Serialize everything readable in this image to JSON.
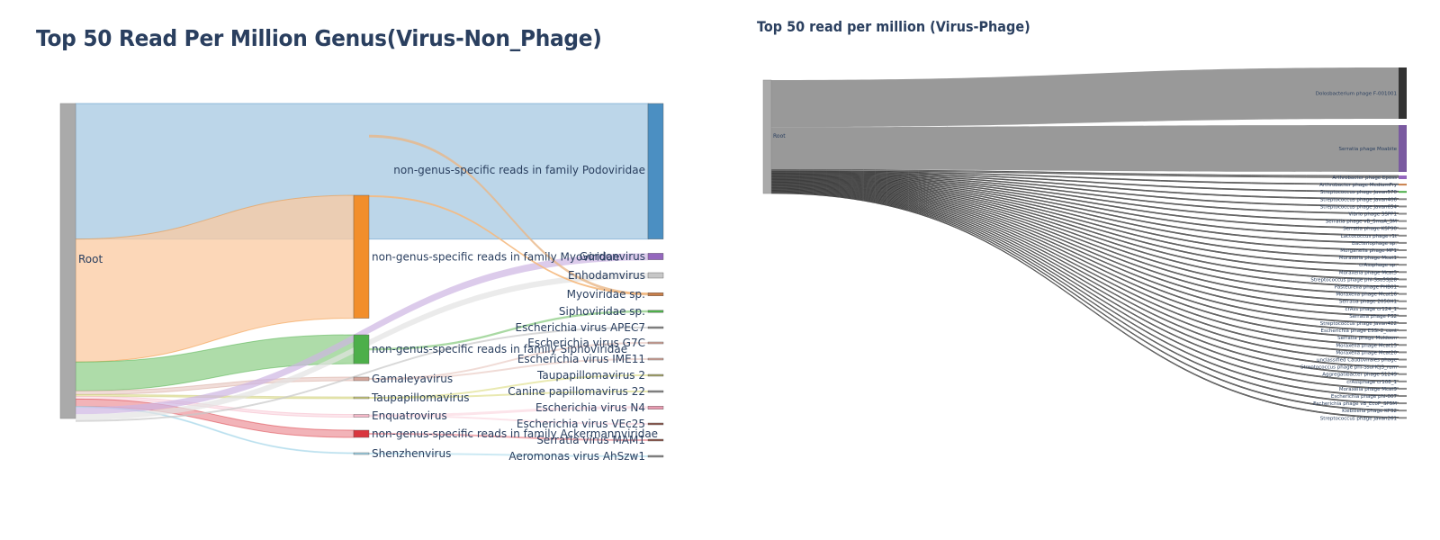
{
  "chart_data": [
    {
      "type": "sankey",
      "title": "Top 50 Read Per Million Genus(Virus-Non_Phage)",
      "root": "Root",
      "level1": [
        {
          "name": "non-genus-specific reads in family Podoviridae",
          "value": 150,
          "color": "#4b8fc2",
          "link_color": "#a6c8e1"
        },
        {
          "name": "non-genus-specific reads in family Myoviridae",
          "value": 136,
          "color": "#f28e2b",
          "link_color": "#fbc9a0"
        },
        {
          "name": "non-genus-specific reads in family Siphoviridae",
          "value": 32,
          "color": "#4daf4a",
          "link_color": "#93d08c"
        },
        {
          "name": "Gamaleyavirus",
          "value": 4,
          "color": "#d4a59a",
          "link_color": "#ecd2cc"
        },
        {
          "name": "Taupapillomavirus",
          "value": 2,
          "color": "#c9c97a",
          "link_color": "#e3e39e"
        },
        {
          "name": "Enquatrovirus",
          "value": 3,
          "color": "#f5b8c8",
          "link_color": "#fbdde5"
        },
        {
          "name": "non-genus-specific reads in family Ackermannviridae",
          "value": 8,
          "color": "#d9363e",
          "link_color": "#ee9aa0"
        },
        {
          "name": "Shenzhenvirus",
          "value": 1,
          "color": "#9fd3e8",
          "link_color": "#bfe3f0"
        }
      ],
      "level2": [
        {
          "name": "Gordonvirus",
          "value": 6,
          "color": "#9467bd",
          "link_color": "#cdb5e3"
        },
        {
          "name": "Enhodamvirus",
          "value": 5,
          "color": "#c7c7c7",
          "link_color": "#e3e3e3"
        },
        {
          "name": "Myoviridae sp.",
          "value": 3,
          "color": "#c87f4a",
          "link_color": "#e8b787"
        },
        {
          "name": "Siphoviridae sp.",
          "value": 2,
          "color": "#4daf4a",
          "link_color": "#93d08c"
        },
        {
          "name": "Escherichia virus APEC7",
          "value": 1.5,
          "color": "#888888",
          "link_color": "#c8c8c8"
        },
        {
          "name": "Escherichia virus G7C",
          "value": 1.5,
          "color": "#d4a59a",
          "link_color": "#ecd2cc"
        },
        {
          "name": "Escherichia virus IME11",
          "value": 1.5,
          "color": "#d4a59a",
          "link_color": "#ecd2cc"
        },
        {
          "name": "Taupapillomavirus 2",
          "value": 1.5,
          "color": "#a6a669",
          "link_color": "#e3e39e"
        },
        {
          "name": "Canine papillomavirus 22",
          "value": 1.5,
          "color": "#888888",
          "link_color": "#e3e39e"
        },
        {
          "name": "Escherichia virus N4",
          "value": 3,
          "color": "#e89ab0",
          "link_color": "#fbdde5"
        },
        {
          "name": "Escherichia virus VEc25",
          "value": 1.5,
          "color": "#8c564b",
          "link_color": "#fbdde5"
        },
        {
          "name": "Serratia virus MAM1",
          "value": 1.5,
          "color": "#8c564b",
          "link_color": "#ee9aa0"
        },
        {
          "name": "Aeromonas virus AhSzw1",
          "value": 1.5,
          "color": "#888888",
          "link_color": "#bfe3f0"
        }
      ],
      "links_l1_l2": [
        {
          "source": "non-genus-specific reads in family Myoviridae",
          "target": "Myoviridae sp."
        },
        {
          "source": "non-genus-specific reads in family Siphoviridae",
          "target": "Siphoviridae sp."
        },
        {
          "source": "Gamaleyavirus",
          "target": "Escherichia virus G7C"
        },
        {
          "source": "Gamaleyavirus",
          "target": "Escherichia virus IME11"
        },
        {
          "source": "Taupapillomavirus",
          "target": "Taupapillomavirus 2"
        },
        {
          "source": "Taupapillomavirus",
          "target": "Canine papillomavirus 22"
        },
        {
          "source": "Enquatrovirus",
          "target": "Escherichia virus N4"
        },
        {
          "source": "Enquatrovirus",
          "target": "Escherichia virus VEc25"
        },
        {
          "source": "non-genus-specific reads in family Ackermannviridae",
          "target": "Serratia virus MAM1"
        },
        {
          "source": "Shenzhenvirus",
          "target": "Aeromonas virus AhSzw1"
        }
      ],
      "links_root_l2": [
        "Gordonvirus",
        "Enhodamvirus",
        "Escherichia virus APEC7"
      ]
    },
    {
      "type": "sankey",
      "title": "Top 50 read per million (Virus-Phage)",
      "root": "Root",
      "targets": [
        {
          "name": "Dolosbacterium phage F-001001",
          "value": 55,
          "color": "#333333"
        },
        {
          "name": "Serratia phage Moabite",
          "value": 50,
          "color": "#7a5aa0"
        },
        {
          "name": "Arthrobacter phage Eposs",
          "value": 1.5,
          "color": "#9467bd"
        },
        {
          "name": "Arthrobacter phage MediumFry",
          "value": 0.8,
          "color": "#c87f4a"
        },
        {
          "name": "Streptococcus phage Javan570",
          "value": 0.8,
          "color": "#4daf4a"
        },
        {
          "name": "Streptococcus phage Javan406",
          "value": 0.8,
          "color": "#888888"
        },
        {
          "name": "Streptococcus phage Javan654",
          "value": 0.8,
          "color": "#888888"
        },
        {
          "name": "Vibrio phage 3SPP1",
          "value": 0.8,
          "color": "#888888"
        },
        {
          "name": "Serratia phage vB_SmaA_3M",
          "value": 0.8,
          "color": "#888888"
        },
        {
          "name": "Serratia phage KSP90",
          "value": 0.8,
          "color": "#888888"
        },
        {
          "name": "Lactococcus phage r1t",
          "value": 0.8,
          "color": "#888888"
        },
        {
          "name": "Bacteriophage sp.",
          "value": 0.8,
          "color": "#888888"
        },
        {
          "name": "Morganella phage MP1",
          "value": 0.8,
          "color": "#888888"
        },
        {
          "name": "Moraxella phage Mcat1",
          "value": 0.8,
          "color": "#888888"
        },
        {
          "name": "crAssphage sp.",
          "value": 0.8,
          "color": "#888888"
        },
        {
          "name": "Moraxella phage Mcat5",
          "value": 0.8,
          "color": "#888888"
        },
        {
          "name": "Streptococcus phage phi-Ssu5SJ28",
          "value": 0.8,
          "color": "#888888"
        },
        {
          "name": "Pasteurella phage PHB01",
          "value": 0.8,
          "color": "#888888"
        },
        {
          "name": "Moraxella phage Mcat16",
          "value": 0.8,
          "color": "#888888"
        },
        {
          "name": "Serratia phage 2050H1",
          "value": 0.8,
          "color": "#888888"
        },
        {
          "name": "crAss phage cr124_1",
          "value": 0.8,
          "color": "#888888"
        },
        {
          "name": "Serratia phage PS2",
          "value": 0.8,
          "color": "#888888"
        },
        {
          "name": "Streptococcus phage Javan422",
          "value": 0.8,
          "color": "#888888"
        },
        {
          "name": "Escherichia phage ESSI-2_cont",
          "value": 0.8,
          "color": "#888888"
        },
        {
          "name": "Serratia phage Muldoon",
          "value": 0.8,
          "color": "#888888"
        },
        {
          "name": "Moraxella phage Mcat15",
          "value": 0.8,
          "color": "#888888"
        },
        {
          "name": "Moraxella phage Mcat20",
          "value": 0.8,
          "color": "#888888"
        },
        {
          "name": "unclassified Caudovirales phage",
          "value": 0.8,
          "color": "#888888"
        },
        {
          "name": "Streptococcus phage phi-SsuHCJ3_rum",
          "value": 0.8,
          "color": "#888888"
        },
        {
          "name": "Aggregatibacter phage S1249",
          "value": 0.8,
          "color": "#888888"
        },
        {
          "name": "crAssphage cr108_1",
          "value": 0.8,
          "color": "#888888"
        },
        {
          "name": "Moraxella phage Mcat9",
          "value": 0.8,
          "color": "#888888"
        },
        {
          "name": "Escherichia phage phi-007",
          "value": 0.8,
          "color": "#888888"
        },
        {
          "name": "Escherichia phage vB_EcoP_SP5M",
          "value": 0.8,
          "color": "#888888"
        },
        {
          "name": "Klebsiella phage KP32",
          "value": 0.8,
          "color": "#888888"
        },
        {
          "name": "Streptococcus phage Javan261",
          "value": 0.8,
          "color": "#888888"
        }
      ]
    }
  ]
}
